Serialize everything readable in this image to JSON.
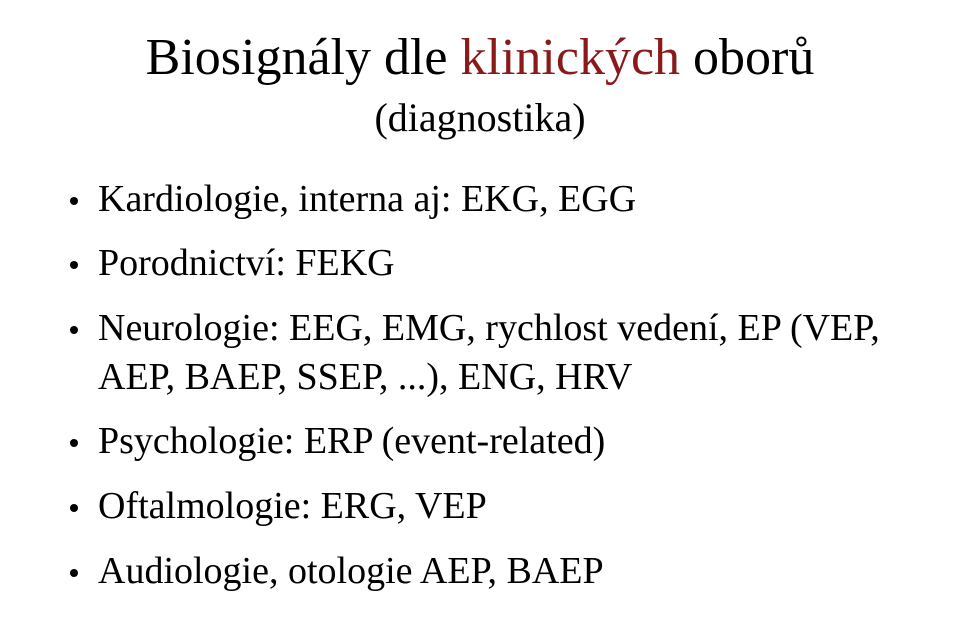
{
  "title": {
    "pre": "Biosignály dle ",
    "accent": "klinických",
    "post": " oborů"
  },
  "subtitle": "(diagnostika)",
  "bullets": [
    "Kardiologie, interna aj: EKG, EGG",
    "Porodnictví: FEKG",
    "Neurologie: EEG, EMG, rychlost vedení, EP (VEP, AEP, BAEP, SSEP, ...), ENG, HRV",
    "Psychologie: ERP (event-related)",
    "Oftalmologie: ERG, VEP",
    "Audiologie, otologie AEP, BAEP"
  ],
  "colors": {
    "accent": "#8a1a1a",
    "text": "#000000",
    "background": "#ffffff"
  },
  "typography": {
    "family": "Times New Roman",
    "title_fontsize": 52,
    "subtitle_fontsize": 40,
    "bullet_fontsize": 38
  }
}
